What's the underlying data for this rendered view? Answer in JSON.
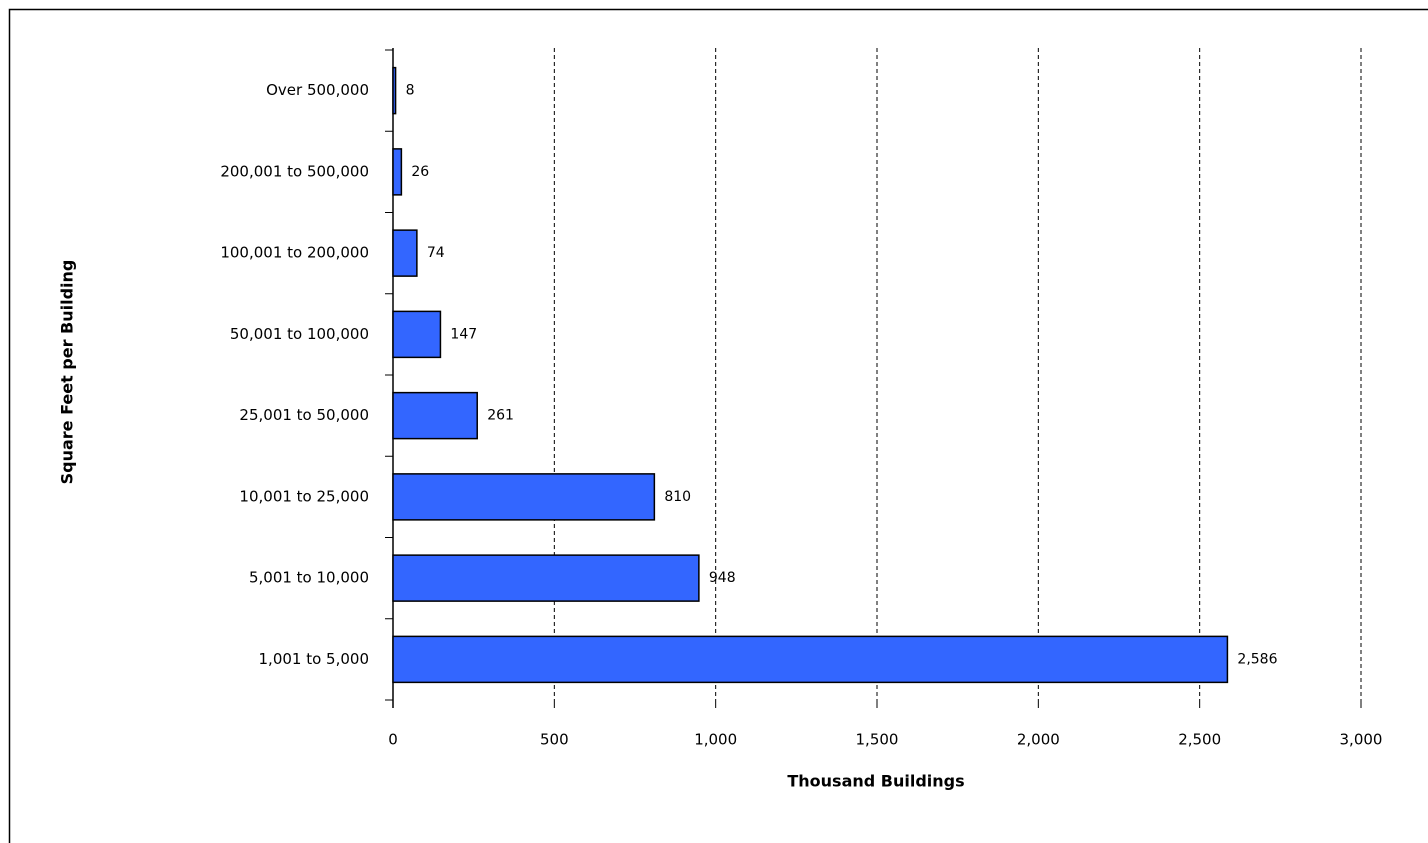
{
  "chart_data": {
    "type": "barh",
    "x_label": "Thousand Buildings",
    "y_label": "Square Feet per Building",
    "categories": [
      "Over 500,000",
      "200,001 to 500,000",
      "100,001 to 200,000",
      "50,001 to 100,000",
      "25,001 to 50,000",
      "10,001 to 25,000",
      "5,001 to 10,000",
      "1,001 to 5,000"
    ],
    "values": [
      8,
      26,
      74,
      147,
      261,
      810,
      948,
      2586
    ],
    "value_labels": [
      "8",
      "26",
      "74",
      "147",
      "261",
      "810",
      "948",
      "2,586"
    ],
    "color": "#3366ff",
    "xlim": [
      0,
      3000
    ],
    "xticks": [
      0,
      500,
      {
        "value": 1000,
        "label": "1,000"
      },
      {
        "value": 1500,
        "label": "1,500"
      },
      {
        "value": 2000,
        "label": "2,000"
      },
      {
        "value": 2500,
        "label": "2,500"
      },
      {
        "value": 3000,
        "label": "3,000"
      }
    ],
    "grid": true
  }
}
